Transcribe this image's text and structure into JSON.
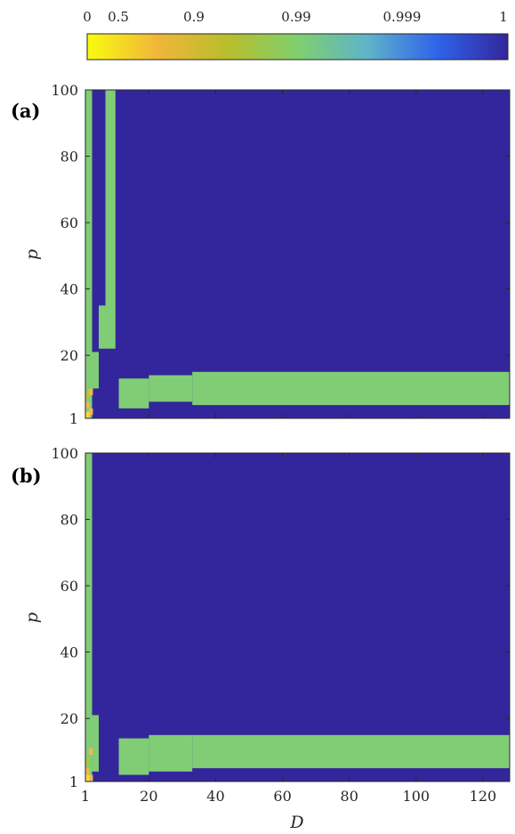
{
  "colorbar": {
    "labels": [
      "0",
      "0.5",
      "0.9",
      "0.99",
      "0.999",
      "1"
    ],
    "stops": [
      "#f9fb0e",
      "#f0b63a",
      "#b8bd2b",
      "#7fcf6e",
      "#5fb3c9",
      "#2f63ea",
      "#33269c"
    ]
  },
  "colors": {
    "saturated": "#33269c",
    "level_099": "#80cd76",
    "level_05": "#ecb84c",
    "level_0": "#f6d83a",
    "level_09": "#b5c23d"
  },
  "chart_data": [
    {
      "type": "heatmap",
      "panel_label": "(a)",
      "xlabel": "",
      "ylabel": "p",
      "xlim": [
        1,
        128
      ],
      "ylim": [
        1,
        100
      ],
      "xticks": [
        1,
        20,
        40,
        60,
        80,
        100,
        120
      ],
      "yticks": [
        1,
        20,
        40,
        60,
        80,
        100
      ],
      "background_level": "1",
      "regions": [
        {
          "level": "0.99",
          "D": [
            1,
            3
          ],
          "p": [
            1,
            100
          ]
        },
        {
          "level": "0.99",
          "D": [
            7,
            10
          ],
          "p": [
            22,
            100
          ]
        },
        {
          "level": "0.99",
          "D": [
            5,
            7
          ],
          "p": [
            22,
            35
          ]
        },
        {
          "level": "0.99",
          "D": [
            3,
            5
          ],
          "p": [
            10,
            21
          ]
        },
        {
          "level": "0.99",
          "D": [
            11,
            20
          ],
          "p": [
            4,
            13
          ]
        },
        {
          "level": "0.99",
          "D": [
            20,
            33
          ],
          "p": [
            6,
            14
          ]
        },
        {
          "level": "0.99",
          "D": [
            33,
            128
          ],
          "p": [
            5,
            15
          ]
        }
      ],
      "low_cells": [
        {
          "level": "0.5",
          "D": 1,
          "p": 5
        },
        {
          "level": "0.5",
          "D": 2,
          "p": 3
        },
        {
          "level": "0.9",
          "D": 1,
          "p": 8
        },
        {
          "level": "0.5",
          "D": 2,
          "p": 9
        },
        {
          "level": "0",
          "D": 1,
          "p": 2
        }
      ]
    },
    {
      "type": "heatmap",
      "panel_label": "(b)",
      "xlabel": "D",
      "ylabel": "p",
      "xlim": [
        1,
        128
      ],
      "ylim": [
        1,
        100
      ],
      "xticks": [
        1,
        20,
        40,
        60,
        80,
        100,
        120
      ],
      "yticks": [
        1,
        20,
        40,
        60,
        80,
        100
      ],
      "background_level": "1",
      "regions": [
        {
          "level": "0.99",
          "D": [
            1,
            3
          ],
          "p": [
            1,
            100
          ]
        },
        {
          "level": "0.99",
          "D": [
            3,
            5
          ],
          "p": [
            4,
            21
          ]
        },
        {
          "level": "0.99",
          "D": [
            11,
            20
          ],
          "p": [
            3,
            14
          ]
        },
        {
          "level": "0.99",
          "D": [
            20,
            33
          ],
          "p": [
            4,
            15
          ]
        },
        {
          "level": "0.99",
          "D": [
            33,
            128
          ],
          "p": [
            5,
            15
          ]
        }
      ],
      "low_cells": [
        {
          "level": "0.5",
          "D": 1,
          "p": 4
        },
        {
          "level": "0.5",
          "D": 2,
          "p": 2
        },
        {
          "level": "0.9",
          "D": 1,
          "p": 7
        },
        {
          "level": "0",
          "D": 1,
          "p": 2
        },
        {
          "level": "0.5",
          "D": 2,
          "p": 10
        }
      ]
    }
  ]
}
